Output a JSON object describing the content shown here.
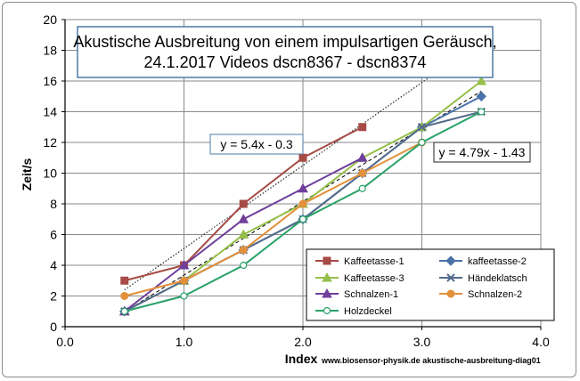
{
  "chart_data": {
    "type": "line",
    "title_lines": [
      "Akustische Ausbreitung  von einem impulsartigen Geräusch,",
      "24.1.2017  Videos dscn8367 - dscn8374"
    ],
    "xlabel": "Index",
    "ylabel": "Zeit/s",
    "xlim": [
      0,
      4
    ],
    "ylim": [
      0,
      20
    ],
    "x_ticks": [
      "0.0",
      "1.0",
      "2.0",
      "3.0",
      "4.0"
    ],
    "y_ticks": [
      "0",
      "2",
      "4",
      "6",
      "8",
      "10",
      "12",
      "14",
      "16",
      "18",
      "20"
    ],
    "grid": true,
    "legend_position": "bottom-right",
    "source": "www.biosensor-physik.de  akustische-ausbreitung-diag01",
    "trendlines": [
      {
        "label": "y = 5.4x - 0.3",
        "slope": 5.4,
        "intercept": -0.3,
        "x_range": [
          0.5,
          3.5
        ],
        "style": "dotted"
      },
      {
        "label": "y = 4.79x - 1.43",
        "slope": 4.79,
        "intercept": -1.43,
        "x_range": [
          0.5,
          3.5
        ],
        "style": "dashed"
      }
    ],
    "series": [
      {
        "name": "Kaffeetasse-1",
        "color": "#a64b45",
        "marker": "square",
        "x": [
          0.5,
          1.0,
          1.5,
          2.0,
          2.5
        ],
        "y": [
          3,
          4,
          8,
          11,
          13
        ]
      },
      {
        "name": "kaffeetasse-2",
        "color": "#4a72a8",
        "marker": "diamond",
        "x": [
          0.5,
          1.0,
          1.5,
          2.0,
          2.5,
          3.0,
          3.5
        ],
        "y": [
          1,
          3,
          5,
          7,
          10,
          13,
          15
        ]
      },
      {
        "name": "Kaffeetasse-3",
        "color": "#96bf4a",
        "marker": "triangle",
        "x": [
          0.5,
          1.0,
          1.5,
          2.0,
          2.5,
          3.0,
          3.5
        ],
        "y": [
          1,
          3,
          6,
          8,
          11,
          13,
          16
        ]
      },
      {
        "name": "Händeklatsch",
        "color": "#536a8c",
        "marker": "x",
        "x": [
          0.5,
          1.0,
          1.5,
          2.0,
          2.5,
          3.0,
          3.5
        ],
        "y": [
          1,
          3,
          5,
          7,
          10,
          13,
          14
        ]
      },
      {
        "name": "Schnalzen-1",
        "color": "#6f3f9b",
        "marker": "triangle",
        "x": [
          0.5,
          1.0,
          1.5,
          2.0,
          2.5
        ],
        "y": [
          1,
          4,
          7,
          9,
          11
        ]
      },
      {
        "name": "Schnalzen-2",
        "color": "#e3903a",
        "marker": "circle",
        "x": [
          0.5,
          1.0,
          1.5,
          2.0,
          2.5,
          3.0
        ],
        "y": [
          2,
          3,
          5,
          8,
          10,
          12
        ]
      },
      {
        "name": "Holzdeckel",
        "color": "#2aa268",
        "marker": "circle-open",
        "x": [
          0.5,
          1.0,
          1.5,
          2.0,
          2.5,
          3.0,
          3.5
        ],
        "y": [
          1,
          2,
          4,
          7,
          9,
          12,
          14
        ]
      }
    ]
  }
}
